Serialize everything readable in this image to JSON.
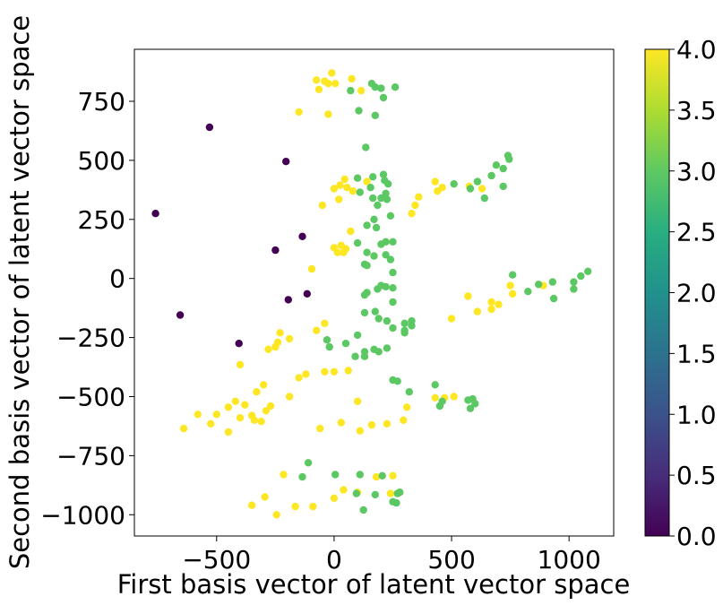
{
  "chart_data": {
    "type": "scatter",
    "title": "",
    "xlabel": "First basis vector of latent vector space",
    "ylabel": "Second basis vector of latent vector space",
    "xlim": [
      -850,
      1190
    ],
    "ylim": [
      -1090,
      970
    ],
    "xticks": [
      -500,
      0,
      500,
      1000
    ],
    "xtick_labels": [
      "−500",
      "0",
      "500",
      "1000"
    ],
    "yticks": [
      -1000,
      -750,
      -500,
      -250,
      0,
      250,
      500,
      750
    ],
    "ytick_labels": [
      "−1000",
      "−750",
      "−500",
      "−250",
      "0",
      "250",
      "500",
      "750"
    ],
    "grid": false,
    "colorbar": {
      "colormap": "viridis",
      "range": [
        0.0,
        4.0
      ],
      "ticks": [
        0.0,
        0.5,
        1.0,
        1.5,
        2.0,
        2.5,
        3.0,
        3.5,
        4.0
      ],
      "tick_labels": [
        "0.0",
        "0.5",
        "1.0",
        "1.5",
        "2.0",
        "2.5",
        "3.0",
        "3.5",
        "4.0"
      ]
    },
    "colors": {
      "0": "#440154",
      "3": "#5cc863",
      "4": "#fde725"
    },
    "points": [
      {
        "x": -530,
        "y": 640,
        "c": 0
      },
      {
        "x": -205,
        "y": 495,
        "c": 0
      },
      {
        "x": -760,
        "y": 275,
        "c": 0
      },
      {
        "x": -135,
        "y": 178,
        "c": 0
      },
      {
        "x": -250,
        "y": 120,
        "c": 0
      },
      {
        "x": -195,
        "y": -90,
        "c": 0
      },
      {
        "x": -115,
        "y": -65,
        "c": 0
      },
      {
        "x": -655,
        "y": -155,
        "c": 0
      },
      {
        "x": -405,
        "y": -275,
        "c": 0
      },
      {
        "x": -10,
        "y": 870,
        "c": 4
      },
      {
        "x": 75,
        "y": 845,
        "c": 4
      },
      {
        "x": -75,
        "y": 840,
        "c": 4
      },
      {
        "x": -40,
        "y": 835,
        "c": 4
      },
      {
        "x": -25,
        "y": 825,
        "c": 4
      },
      {
        "x": 5,
        "y": 825,
        "c": 4
      },
      {
        "x": -65,
        "y": 800,
        "c": 4
      },
      {
        "x": 115,
        "y": 795,
        "c": 4
      },
      {
        "x": -150,
        "y": 705,
        "c": 4
      },
      {
        "x": -25,
        "y": 695,
        "c": 4
      },
      {
        "x": 45,
        "y": 420,
        "c": 4
      },
      {
        "x": 140,
        "y": 410,
        "c": 4
      },
      {
        "x": 25,
        "y": 395,
        "c": 4
      },
      {
        "x": 55,
        "y": 385,
        "c": 4
      },
      {
        "x": 0,
        "y": 380,
        "c": 4
      },
      {
        "x": 80,
        "y": 370,
        "c": 4
      },
      {
        "x": 20,
        "y": 335,
        "c": 4
      },
      {
        "x": -50,
        "y": 310,
        "c": 4
      },
      {
        "x": 70,
        "y": 200,
        "c": 4
      },
      {
        "x": 0,
        "y": 130,
        "c": 4
      },
      {
        "x": 30,
        "y": 140,
        "c": 4
      },
      {
        "x": 50,
        "y": 125,
        "c": 4
      },
      {
        "x": 15,
        "y": 110,
        "c": 4
      },
      {
        "x": 40,
        "y": 110,
        "c": 4
      },
      {
        "x": -95,
        "y": 40,
        "c": 4
      },
      {
        "x": 430,
        "y": 410,
        "c": 4
      },
      {
        "x": 440,
        "y": 370,
        "c": 4
      },
      {
        "x": 460,
        "y": 385,
        "c": 4
      },
      {
        "x": 360,
        "y": 345,
        "c": 4
      },
      {
        "x": 345,
        "y": 310,
        "c": 4
      },
      {
        "x": 330,
        "y": 275,
        "c": 4
      },
      {
        "x": 575,
        "y": 390,
        "c": 4
      },
      {
        "x": 630,
        "y": 380,
        "c": 4
      },
      {
        "x": 750,
        "y": -30,
        "c": 4
      },
      {
        "x": 760,
        "y": -65,
        "c": 4
      },
      {
        "x": 570,
        "y": -75,
        "c": 4
      },
      {
        "x": 670,
        "y": -100,
        "c": 4
      },
      {
        "x": 700,
        "y": -110,
        "c": 4
      },
      {
        "x": 670,
        "y": -130,
        "c": 4
      },
      {
        "x": 610,
        "y": -140,
        "c": 4
      },
      {
        "x": 500,
        "y": -170,
        "c": 4
      },
      {
        "x": 890,
        "y": -30,
        "c": 4
      },
      {
        "x": -40,
        "y": -190,
        "c": 4
      },
      {
        "x": -75,
        "y": -220,
        "c": 4
      },
      {
        "x": -230,
        "y": -230,
        "c": 4
      },
      {
        "x": -190,
        "y": -255,
        "c": 4
      },
      {
        "x": -240,
        "y": -270,
        "c": 4
      },
      {
        "x": -250,
        "y": -290,
        "c": 4
      },
      {
        "x": -280,
        "y": -300,
        "c": 4
      },
      {
        "x": -400,
        "y": -365,
        "c": 4
      },
      {
        "x": -150,
        "y": -420,
        "c": 4
      },
      {
        "x": -120,
        "y": -405,
        "c": 4
      },
      {
        "x": -40,
        "y": -395,
        "c": 4
      },
      {
        "x": 0,
        "y": -395,
        "c": 4
      },
      {
        "x": 60,
        "y": -390,
        "c": 4
      },
      {
        "x": -300,
        "y": -450,
        "c": 4
      },
      {
        "x": -330,
        "y": -480,
        "c": 4
      },
      {
        "x": -190,
        "y": -500,
        "c": 4
      },
      {
        "x": -420,
        "y": -520,
        "c": 4
      },
      {
        "x": -380,
        "y": -535,
        "c": 4
      },
      {
        "x": -270,
        "y": -540,
        "c": 4
      },
      {
        "x": -450,
        "y": -545,
        "c": 4
      },
      {
        "x": -290,
        "y": -560,
        "c": 4
      },
      {
        "x": -500,
        "y": -575,
        "c": 4
      },
      {
        "x": -580,
        "y": -575,
        "c": 4
      },
      {
        "x": -350,
        "y": -580,
        "c": 4
      },
      {
        "x": -400,
        "y": -590,
        "c": 4
      },
      {
        "x": -340,
        "y": -600,
        "c": 4
      },
      {
        "x": -310,
        "y": -605,
        "c": 4
      },
      {
        "x": -525,
        "y": -615,
        "c": 4
      },
      {
        "x": -640,
        "y": -635,
        "c": 4
      },
      {
        "x": -450,
        "y": -650,
        "c": 4
      },
      {
        "x": 100,
        "y": -520,
        "c": 4
      },
      {
        "x": 30,
        "y": -610,
        "c": 4
      },
      {
        "x": 160,
        "y": -620,
        "c": 4
      },
      {
        "x": 110,
        "y": -645,
        "c": 4
      },
      {
        "x": -60,
        "y": -635,
        "c": 4
      },
      {
        "x": 225,
        "y": -615,
        "c": 4
      },
      {
        "x": 295,
        "y": -600,
        "c": 4
      },
      {
        "x": 310,
        "y": -545,
        "c": 4
      },
      {
        "x": 430,
        "y": -505,
        "c": 4
      },
      {
        "x": 470,
        "y": -505,
        "c": 4
      },
      {
        "x": 510,
        "y": -500,
        "c": 4
      },
      {
        "x": -215,
        "y": -830,
        "c": 4
      },
      {
        "x": -295,
        "y": -925,
        "c": 4
      },
      {
        "x": 40,
        "y": -895,
        "c": 4
      },
      {
        "x": 0,
        "y": -930,
        "c": 4
      },
      {
        "x": 100,
        "y": -905,
        "c": 4
      },
      {
        "x": 180,
        "y": -840,
        "c": 4
      },
      {
        "x": 250,
        "y": -835,
        "c": 4
      },
      {
        "x": 240,
        "y": -910,
        "c": 4
      },
      {
        "x": -165,
        "y": -965,
        "c": 4
      },
      {
        "x": -90,
        "y": -965,
        "c": 4
      },
      {
        "x": -350,
        "y": -960,
        "c": 4
      },
      {
        "x": -245,
        "y": -1000,
        "c": 4
      },
      {
        "x": 160,
        "y": 825,
        "c": 3
      },
      {
        "x": 175,
        "y": 810,
        "c": 3
      },
      {
        "x": 200,
        "y": 805,
        "c": 3
      },
      {
        "x": 260,
        "y": 810,
        "c": 3
      },
      {
        "x": 70,
        "y": 795,
        "c": 3
      },
      {
        "x": 210,
        "y": 765,
        "c": 3
      },
      {
        "x": 105,
        "y": 710,
        "c": 3
      },
      {
        "x": 175,
        "y": 690,
        "c": 3
      },
      {
        "x": 135,
        "y": 555,
        "c": 3
      },
      {
        "x": 740,
        "y": 520,
        "c": 3
      },
      {
        "x": 745,
        "y": 505,
        "c": 3
      },
      {
        "x": 690,
        "y": 480,
        "c": 3
      },
      {
        "x": 720,
        "y": 465,
        "c": 3
      },
      {
        "x": 670,
        "y": 435,
        "c": 3
      },
      {
        "x": 610,
        "y": 410,
        "c": 3
      },
      {
        "x": 510,
        "y": 400,
        "c": 3
      },
      {
        "x": 580,
        "y": 380,
        "c": 3
      },
      {
        "x": 720,
        "y": 390,
        "c": 3
      },
      {
        "x": 640,
        "y": 340,
        "c": 3
      },
      {
        "x": 210,
        "y": 440,
        "c": 3
      },
      {
        "x": 165,
        "y": 430,
        "c": 3
      },
      {
        "x": 100,
        "y": 425,
        "c": 3
      },
      {
        "x": 215,
        "y": 415,
        "c": 3
      },
      {
        "x": 230,
        "y": 400,
        "c": 3
      },
      {
        "x": 155,
        "y": 385,
        "c": 3
      },
      {
        "x": 110,
        "y": 365,
        "c": 3
      },
      {
        "x": 220,
        "y": 360,
        "c": 3
      },
      {
        "x": 165,
        "y": 340,
        "c": 3
      },
      {
        "x": 200,
        "y": 340,
        "c": 3
      },
      {
        "x": 225,
        "y": 335,
        "c": 3
      },
      {
        "x": 185,
        "y": 310,
        "c": 3
      },
      {
        "x": 240,
        "y": 265,
        "c": 3
      },
      {
        "x": 170,
        "y": 250,
        "c": 3
      },
      {
        "x": 140,
        "y": 225,
        "c": 3
      },
      {
        "x": 180,
        "y": 215,
        "c": 3
      },
      {
        "x": 220,
        "y": 155,
        "c": 3
      },
      {
        "x": 250,
        "y": 155,
        "c": 3
      },
      {
        "x": 200,
        "y": 145,
        "c": 3
      },
      {
        "x": 100,
        "y": 150,
        "c": 3
      },
      {
        "x": 140,
        "y": 110,
        "c": 3
      },
      {
        "x": 220,
        "y": 100,
        "c": 3
      },
      {
        "x": 170,
        "y": 95,
        "c": 3
      },
      {
        "x": 240,
        "y": 80,
        "c": 3
      },
      {
        "x": 130,
        "y": 60,
        "c": 3
      },
      {
        "x": 140,
        "y": 55,
        "c": 3
      },
      {
        "x": 250,
        "y": 25,
        "c": 3
      },
      {
        "x": 200,
        "y": -30,
        "c": 3
      },
      {
        "x": 220,
        "y": -35,
        "c": 3
      },
      {
        "x": 185,
        "y": -45,
        "c": 3
      },
      {
        "x": 250,
        "y": -40,
        "c": 3
      },
      {
        "x": 140,
        "y": -60,
        "c": 3
      },
      {
        "x": 130,
        "y": -70,
        "c": 3
      },
      {
        "x": 250,
        "y": -100,
        "c": 3
      },
      {
        "x": 175,
        "y": -140,
        "c": 3
      },
      {
        "x": 130,
        "y": -145,
        "c": 3
      },
      {
        "x": 190,
        "y": -170,
        "c": 3
      },
      {
        "x": 225,
        "y": -180,
        "c": 3
      },
      {
        "x": 330,
        "y": -180,
        "c": 3
      },
      {
        "x": 300,
        "y": -190,
        "c": 3
      },
      {
        "x": 330,
        "y": -200,
        "c": 3
      },
      {
        "x": 250,
        "y": -210,
        "c": 3
      },
      {
        "x": 300,
        "y": -220,
        "c": 3
      },
      {
        "x": 300,
        "y": -230,
        "c": 3
      },
      {
        "x": 100,
        "y": -240,
        "c": 3
      },
      {
        "x": -30,
        "y": -260,
        "c": 3
      },
      {
        "x": 50,
        "y": -275,
        "c": 3
      },
      {
        "x": -20,
        "y": -290,
        "c": 3
      },
      {
        "x": 225,
        "y": -295,
        "c": 3
      },
      {
        "x": 170,
        "y": -300,
        "c": 3
      },
      {
        "x": 130,
        "y": -310,
        "c": 3
      },
      {
        "x": 190,
        "y": -310,
        "c": 3
      },
      {
        "x": 90,
        "y": -330,
        "c": 3
      },
      {
        "x": 130,
        "y": -330,
        "c": 3
      },
      {
        "x": 760,
        "y": 15,
        "c": 3
      },
      {
        "x": 1080,
        "y": 30,
        "c": 3
      },
      {
        "x": 1050,
        "y": 10,
        "c": 3
      },
      {
        "x": 1020,
        "y": -15,
        "c": 3
      },
      {
        "x": 930,
        "y": -15,
        "c": 3
      },
      {
        "x": 870,
        "y": -25,
        "c": 3
      },
      {
        "x": 1020,
        "y": -45,
        "c": 3
      },
      {
        "x": 825,
        "y": -55,
        "c": 3
      },
      {
        "x": 935,
        "y": -85,
        "c": 3
      },
      {
        "x": 250,
        "y": -430,
        "c": 3
      },
      {
        "x": 270,
        "y": -435,
        "c": 3
      },
      {
        "x": 430,
        "y": -450,
        "c": 3
      },
      {
        "x": 320,
        "y": -480,
        "c": 3
      },
      {
        "x": 460,
        "y": -520,
        "c": 3
      },
      {
        "x": 570,
        "y": -515,
        "c": 3
      },
      {
        "x": 590,
        "y": -510,
        "c": 3
      },
      {
        "x": 600,
        "y": -530,
        "c": 3
      },
      {
        "x": 450,
        "y": -540,
        "c": 3
      },
      {
        "x": 580,
        "y": -550,
        "c": 3
      },
      {
        "x": -110,
        "y": -780,
        "c": 3
      },
      {
        "x": -135,
        "y": -840,
        "c": 3
      },
      {
        "x": 5,
        "y": -830,
        "c": 3
      },
      {
        "x": 110,
        "y": -830,
        "c": 3
      },
      {
        "x": 205,
        "y": -835,
        "c": 3
      },
      {
        "x": 280,
        "y": -905,
        "c": 3
      },
      {
        "x": 270,
        "y": -910,
        "c": 3
      },
      {
        "x": 95,
        "y": -910,
        "c": 3
      },
      {
        "x": 175,
        "y": -915,
        "c": 3
      },
      {
        "x": 250,
        "y": -945,
        "c": 3
      },
      {
        "x": 265,
        "y": -950,
        "c": 3
      },
      {
        "x": 125,
        "y": -980,
        "c": 3
      }
    ]
  }
}
